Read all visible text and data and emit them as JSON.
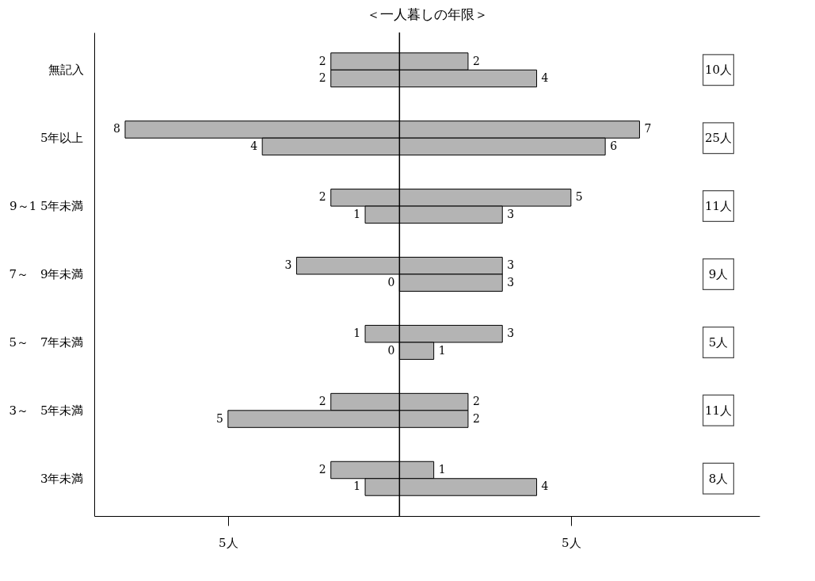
{
  "chart_data": {
    "type": "bar",
    "title": "＜一人暮しの年限＞",
    "orientation": "horizontal",
    "categories": [
      "無記入",
      "5年以上",
      "9～1 5年未満",
      "7～　9年未満",
      "5～　7年未満",
      "3～　5年未満",
      "3年未満"
    ],
    "series": [
      {
        "color": "#b4b4b4",
        "base": [
          -2,
          -8,
          -2,
          -3,
          -1,
          -2,
          -2
        ],
        "values": [
          4,
          15,
          7,
          6,
          4,
          4,
          3
        ]
      },
      {
        "color": "#b4b4b4",
        "base": [
          -2,
          -4,
          -1,
          0,
          0,
          -5,
          -1
        ],
        "values": [
          6,
          10,
          4,
          3,
          1,
          7,
          5
        ]
      }
    ],
    "annotations": [
      {
        "text": "2",
        "x": -2,
        "y": "無記入"
      },
      {
        "text": "2",
        "x": 2,
        "y": "無記入"
      },
      {
        "text": "2",
        "x": -2,
        "y": "無記入"
      },
      {
        "text": "4",
        "x": 4,
        "y": "無記入"
      },
      {
        "text": "8",
        "x": -8,
        "y": "5年以上"
      },
      {
        "text": "7",
        "x": 7,
        "y": "5年以上"
      },
      {
        "text": "4",
        "x": -4,
        "y": "5年以上"
      },
      {
        "text": "6",
        "x": 6,
        "y": "5年以上"
      },
      {
        "text": "2",
        "x": -2,
        "y": "9～1 5年未満"
      },
      {
        "text": "5",
        "x": 5,
        "y": "9～1 5年未満"
      },
      {
        "text": "1",
        "x": -1,
        "y": "9～1 5年未満"
      },
      {
        "text": "3",
        "x": 3,
        "y": "9～1 5年未満"
      },
      {
        "text": "3",
        "x": -3,
        "y": "7～　9年未満"
      },
      {
        "text": "3",
        "x": 3,
        "y": "7～　9年未満"
      },
      {
        "text": "0",
        "x": 0,
        "y": "7～　9年未満"
      },
      {
        "text": "3",
        "x": 3,
        "y": "7～　9年未満"
      },
      {
        "text": "1",
        "x": -1,
        "y": "5～　7年未満"
      },
      {
        "text": "3",
        "x": 3,
        "y": "5～　7年未満"
      },
      {
        "text": "0",
        "x": 0,
        "y": "5～　7年未満"
      },
      {
        "text": "1",
        "x": 1,
        "y": "5～　7年未満"
      },
      {
        "text": "2",
        "x": -2,
        "y": "3～　5年未満"
      },
      {
        "text": "2",
        "x": 2,
        "y": "3～　5年未満"
      },
      {
        "text": "5",
        "x": -5,
        "y": "3～　5年未満"
      },
      {
        "text": "2",
        "x": 2,
        "y": "3～　5年未満"
      },
      {
        "text": "2",
        "x": -2,
        "y": "3年未満"
      },
      {
        "text": "1",
        "x": 1,
        "y": "3年未満"
      },
      {
        "text": "1",
        "x": -1,
        "y": "3年未満"
      },
      {
        "text": "4",
        "x": 4,
        "y": "3年未満"
      },
      "10人",
      "25人",
      "11人",
      "9人",
      "5人",
      "11人",
      "8人"
    ],
    "xlim": [
      -8.9,
      10.5
    ],
    "xticks": [
      {
        "value": -5,
        "label": "5人"
      },
      {
        "value": 5,
        "label": "5人"
      }
    ],
    "ref_lines": [
      {
        "axis": "x",
        "value": 0
      }
    ],
    "grid": false
  }
}
